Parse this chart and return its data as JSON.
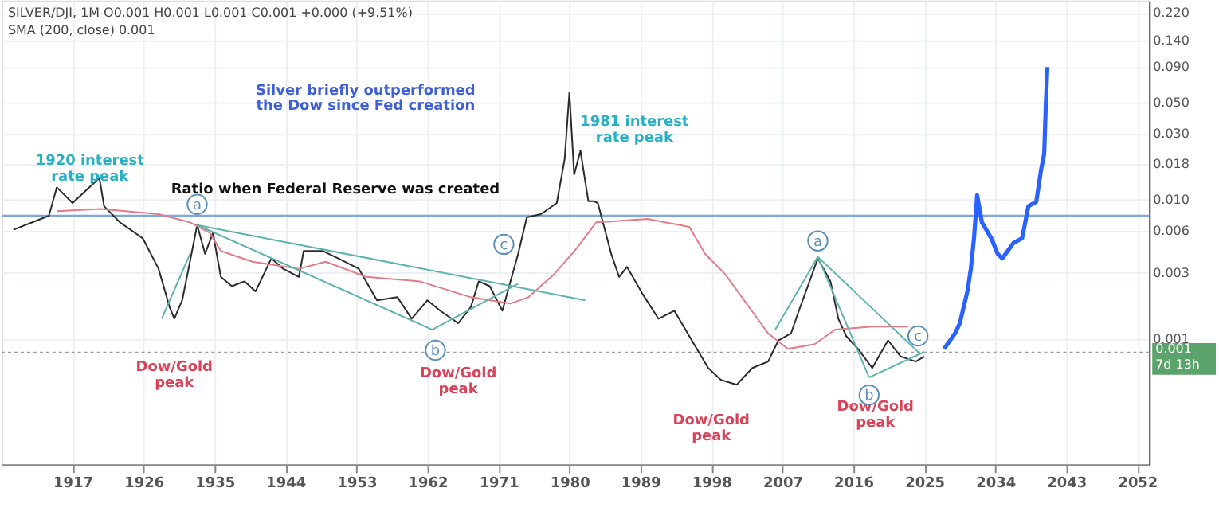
{
  "chart_data": {
    "type": "line",
    "title": "SILVER/DJI, 1M  O0.001  H0.001  L0.001  C0.001  +0.000 (+9.51%)",
    "subtitle": "SMA (200, close)  0.001",
    "xlim": [
      1908,
      2053.5
    ],
    "xticks": [
      1917,
      1926,
      1935,
      1944,
      1953,
      1962,
      1971,
      1980,
      1989,
      1998,
      2007,
      2016,
      2025,
      2034,
      2043,
      2052
    ],
    "ylim": [
      0.000126,
      0.27
    ],
    "log": true,
    "grid": true,
    "yticks": [
      {
        "value": 0.22,
        "label": "0.220"
      },
      {
        "value": 0.14,
        "label": "0.140"
      },
      {
        "value": 0.09,
        "label": "0.090"
      },
      {
        "value": 0.05,
        "label": "0.050"
      },
      {
        "value": 0.03,
        "label": "0.030"
      },
      {
        "value": 0.018,
        "label": "0.018"
      },
      {
        "value": 0.01,
        "label": "0.010"
      },
      {
        "value": 0.006,
        "label": "0.006"
      },
      {
        "value": 0.003,
        "label": "0.003"
      },
      {
        "value": 0.001,
        "label": "0.001"
      }
    ],
    "series": [
      {
        "color": "#2b2b2b",
        "x": [
          1909.5,
          1914.0,
          1915.0,
          1917.0,
          1920.4,
          1921.0,
          1923.0,
          1925.9,
          1927.9,
          1929.3,
          1929.9,
          1930.9,
          1931.5,
          1932.8,
          1933.8,
          1934.8,
          1935.8,
          1937.2,
          1938.8,
          1940.2,
          1942.2,
          1943.7,
          1945.7,
          1946.3,
          1948.7,
          1950.7,
          1953.3,
          1955.6,
          1958.2,
          1960.0,
          1962.0,
          1963.6,
          1965.9,
          1967.5,
          1968.5,
          1969.9,
          1971.5,
          1973.5,
          1974.6,
          1976.4,
          1978.4,
          1979.4,
          1980.0,
          1980.6,
          1981.4,
          1982.4,
          1983.0,
          1983.6,
          1985.3,
          1986.3,
          1987.3,
          1989.3,
          1991.3,
          1993.3,
          1995.2,
          1997.6,
          1999.2,
          2001.2,
          2003.2,
          2005.2,
          2006.5,
          2008.1,
          2009.1,
          2011.5,
          2013.1,
          2014.1,
          2015.1,
          2016.6,
          2018.4,
          2020.4,
          2022.0,
          2023.9,
          2025.0
        ],
        "values": [
          0.0061,
          0.0077,
          0.0123,
          0.0095,
          0.0144,
          0.009,
          0.0069,
          0.0053,
          0.0032,
          0.0017,
          0.0014,
          0.0019,
          0.0028,
          0.0066,
          0.0041,
          0.0058,
          0.0028,
          0.0024,
          0.0026,
          0.0022,
          0.0038,
          0.0032,
          0.0028,
          0.0043,
          0.0043,
          0.0038,
          0.0032,
          0.0019,
          0.002,
          0.0014,
          0.0019,
          0.0016,
          0.0013,
          0.0017,
          0.0026,
          0.0024,
          0.0016,
          0.0041,
          0.0075,
          0.0079,
          0.0095,
          0.0197,
          0.0593,
          0.0152,
          0.0225,
          0.0098,
          0.0098,
          0.0095,
          0.0041,
          0.0028,
          0.0033,
          0.0021,
          0.0014,
          0.0016,
          0.00105,
          0.00062,
          0.00051,
          0.00047,
          0.00062,
          0.00069,
          0.00098,
          0.0011,
          0.0016,
          0.0038,
          0.0026,
          0.0014,
          0.00105,
          0.00085,
          0.00062,
          0.00098,
          0.00075,
          0.00069,
          0.00075
        ]
      },
      {
        "color": "#e57b86",
        "x": [
          1915.0,
          1920.6,
          1927.9,
          1931.9,
          1934.4,
          1935.8,
          1939.8,
          1945.7,
          1949.1,
          1954.2,
          1961.0,
          1967.5,
          1972.5,
          1974.8,
          1978.0,
          1980.8,
          1983.4,
          1989.9,
          1995.2,
          1997.2,
          1999.8,
          2005.2,
          2007.7,
          2011.1,
          2013.7,
          2018.4,
          2023.0
        ],
        "values": [
          0.0083,
          0.0086,
          0.0079,
          0.0069,
          0.0058,
          0.0043,
          0.0036,
          0.0032,
          0.0036,
          0.0028,
          0.0026,
          0.002,
          0.0018,
          0.002,
          0.0029,
          0.0044,
          0.0069,
          0.0073,
          0.0064,
          0.0041,
          0.0029,
          0.0011,
          0.00085,
          0.00092,
          0.00117,
          0.00123,
          0.00123
        ]
      },
      {
        "color": "#2962ff",
        "x": [
          2027.5,
          2028.9,
          2029.5,
          2030.5,
          2030.9,
          2031.3,
          2031.7,
          2032.3,
          2033.5,
          2034.3,
          2034.9,
          2036.3,
          2037.4,
          2038.2,
          2039.2,
          2039.8,
          2040.2,
          2040.4,
          2040.6
        ],
        "values": [
          0.00085,
          0.0011,
          0.0013,
          0.00225,
          0.0032,
          0.0053,
          0.0108,
          0.0069,
          0.0053,
          0.0041,
          0.0038,
          0.0049,
          0.0053,
          0.009,
          0.0097,
          0.0164,
          0.0214,
          0.047,
          0.09
        ]
      },
      {
        "color": "#5fb3ad",
        "x": [
          1932.8,
          1962.6
        ],
        "values": [
          0.0066,
          0.00117
        ]
      },
      {
        "color": "#5fb3ad",
        "x": [
          1932.8,
          1982.0
        ],
        "values": [
          0.0066,
          0.0019
        ]
      },
      {
        "color": "#5fb3ad",
        "x": [
          1962.6,
          1973.5
        ],
        "values": [
          0.00117,
          0.0025
        ]
      },
      {
        "color": "#5fb3ad",
        "x": [
          1928.3,
          1931.9
        ],
        "values": [
          0.0014,
          0.0041
        ]
      },
      {
        "color": "#5fb3ad",
        "x": [
          2006.1,
          2011.5
        ],
        "values": [
          0.00117,
          0.0039
        ]
      },
      {
        "color": "#5fb3ad",
        "x": [
          2011.5,
          2018.0
        ],
        "values": [
          0.0039,
          0.00053
        ]
      },
      {
        "color": "#5fb3ad",
        "x": [
          2011.5,
          2024.4
        ],
        "values": [
          0.0039,
          0.00079
        ]
      },
      {
        "color": "#5fb3ad",
        "x": [
          2018.0,
          2025.0
        ],
        "values": [
          0.00053,
          0.00081
        ]
      }
    ],
    "ref_lines": [
      {
        "axis": "y",
        "value": 0.0077,
        "label": "Ratio when Federal Reserve was created",
        "color": "#7fa7d9"
      },
      {
        "axis": "y",
        "value": 0.0008,
        "label": "0.001\n7d 13h",
        "color": "#9e9e9e",
        "line_style": "dotted"
      }
    ],
    "annotations": [
      {
        "text": "1920 interest\nrate peak",
        "x": 1920.4,
        "y": 0.0144
      },
      {
        "text": "1981 interest\nrate peak",
        "x": 1981.4,
        "y": 0.0225
      },
      "Silver briefly outperformed\nthe Dow since Fed creation",
      {
        "text": "Dow/Gold\npeak",
        "x": 1929.9,
        "y": 0.0014
      },
      {
        "text": "Dow/Gold\npeak",
        "x": 1965.9,
        "y": 0.0013
      },
      {
        "text": "Dow/Gold\npeak",
        "x": 1999.2,
        "y": 0.00047
      },
      {
        "text": "Dow/Gold\npeak",
        "x": 2018.4,
        "y": 0.00062
      },
      {
        "text": "a",
        "x": 1932.8,
        "y": 0.0066
      },
      {
        "text": "b",
        "x": 1962.6,
        "y": 0.00117
      },
      {
        "text": "c",
        "x": 1973.5,
        "y": 0.0041
      },
      {
        "text": "a",
        "x": 2011.5,
        "y": 0.0039
      },
      {
        "text": "b",
        "x": 2018.0,
        "y": 0.00053
      },
      {
        "text": "c",
        "x": 2025.0,
        "y": 0.00081
      }
    ]
  }
}
